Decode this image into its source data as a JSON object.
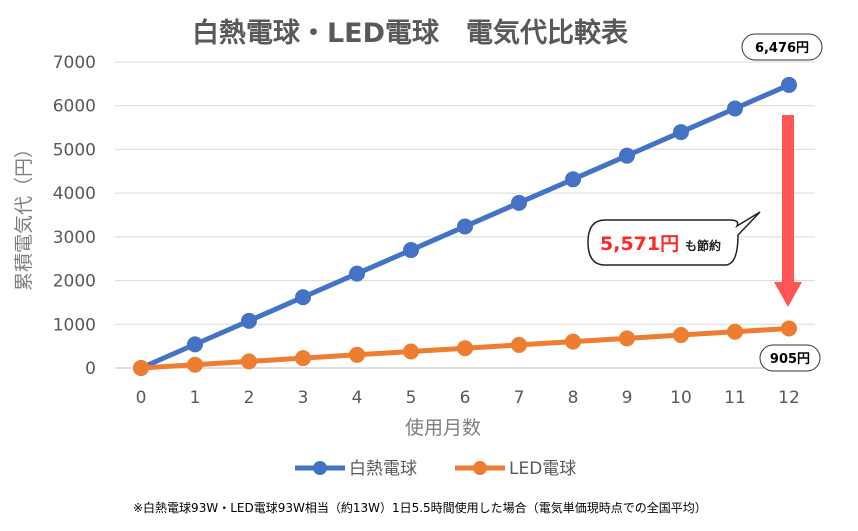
{
  "chart_data": {
    "type": "line",
    "title": "白熱電球・LED電球　電気代比較表",
    "xlabel": "使用月数",
    "ylabel": "累積電気代（円）",
    "x": [
      0,
      1,
      2,
      3,
      4,
      5,
      6,
      7,
      8,
      9,
      10,
      11,
      12
    ],
    "ylim": [
      0,
      7000
    ],
    "yticks": [
      0,
      1000,
      2000,
      3000,
      4000,
      5000,
      6000,
      7000
    ],
    "grid": true,
    "legend": "bottom",
    "series": [
      {
        "name": "白熱電球",
        "color": "#4472C4",
        "values": [
          0,
          540,
          1079,
          1619,
          2159,
          2698,
          3238,
          3778,
          4317,
          4857,
          5397,
          5936,
          6476
        ]
      },
      {
        "name": "LED電球",
        "color": "#ED7D31",
        "values": [
          0,
          75,
          151,
          226,
          302,
          377,
          453,
          528,
          603,
          679,
          754,
          830,
          905
        ]
      }
    ],
    "annotations": {
      "incandescent_end": "6,476円",
      "led_end": "905円",
      "savings_amount": "5,571円",
      "savings_suffix": "も節約",
      "arrow_color": "#FF5555"
    },
    "footnote": "※白熱電球93W・LED電球93W相当（約13W）1日5.5時間使用した場合（電気単価現時点での全国平均）"
  }
}
